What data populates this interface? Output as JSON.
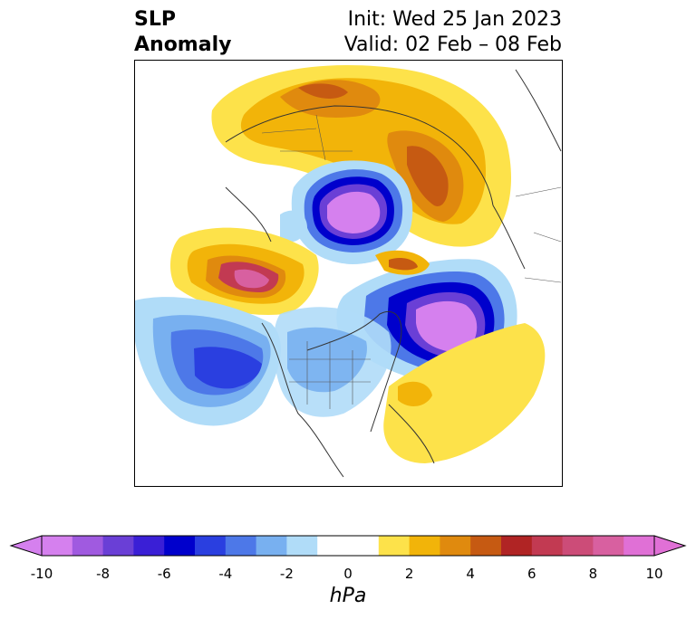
{
  "title": {
    "left_line1": "SLP",
    "left_line2": "Anomaly",
    "right_line1": "Init: Wed 25 Jan 2023",
    "right_line2": "Valid: 02 Feb – 08 Feb"
  },
  "colorbar": {
    "label": "hPa",
    "ticks": [
      "-10",
      "-8",
      "-6",
      "-4",
      "-2",
      "0",
      "2",
      "4",
      "6",
      "8",
      "10"
    ],
    "colors": [
      "#d580ee",
      "#a05ae0",
      "#6a3fd6",
      "#3a1fd6",
      "#0000cc",
      "#2a3fe0",
      "#4d78e8",
      "#78b0f0",
      "#b0dcf8",
      "#ffffff",
      "#ffffff",
      "#fde24a",
      "#f2b409",
      "#e08a0e",
      "#c65a12",
      "#b02424",
      "#c23a52",
      "#cc4c78",
      "#d860a0",
      "#e070d6"
    ]
  },
  "map_palette": {
    "yellow": "#fde24a",
    "gold": "#f2b409",
    "orange": "#e08a0e",
    "rust": "#c65a12",
    "red": "#b02424",
    "crimson": "#c23a52",
    "pink": "#cc4c78",
    "magenta": "#d860a0",
    "lightblue": "#b0dcf8",
    "skyblue": "#78b0f0",
    "blue": "#4d78e8",
    "royal": "#2a3fe0",
    "navy": "#0000cc",
    "indigo": "#3a1fd6",
    "violet": "#6a3fd6",
    "purple": "#a05ae0",
    "lilac": "#d580ee"
  }
}
